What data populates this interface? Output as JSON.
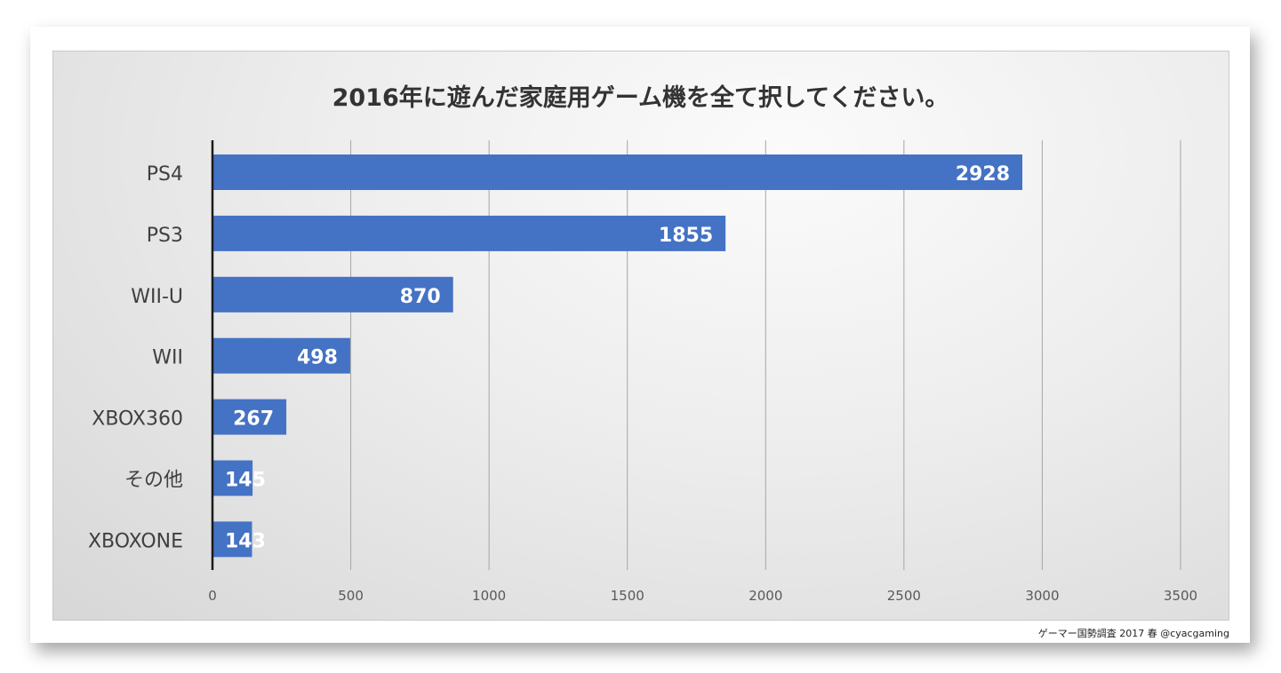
{
  "chart_data": {
    "type": "bar",
    "orientation": "horizontal",
    "title": "2016年に遊んだ家庭用ゲーム機を全て択してください。",
    "categories": [
      "PS4",
      "PS3",
      "WII-U",
      "WII",
      "XBOX360",
      "その他",
      "XBOXONE"
    ],
    "values": [
      2928,
      1855,
      870,
      498,
      267,
      145,
      143
    ],
    "xlim": [
      0,
      3500
    ],
    "xticks": [
      0,
      500,
      1000,
      1500,
      2000,
      2500,
      3000,
      3500
    ],
    "grid": true,
    "legend": "none",
    "bar_color": "#4472c4",
    "data_label_color": "#ffffff",
    "source": "ゲーマー国勢調査 2017 春 @cyacgaming"
  }
}
